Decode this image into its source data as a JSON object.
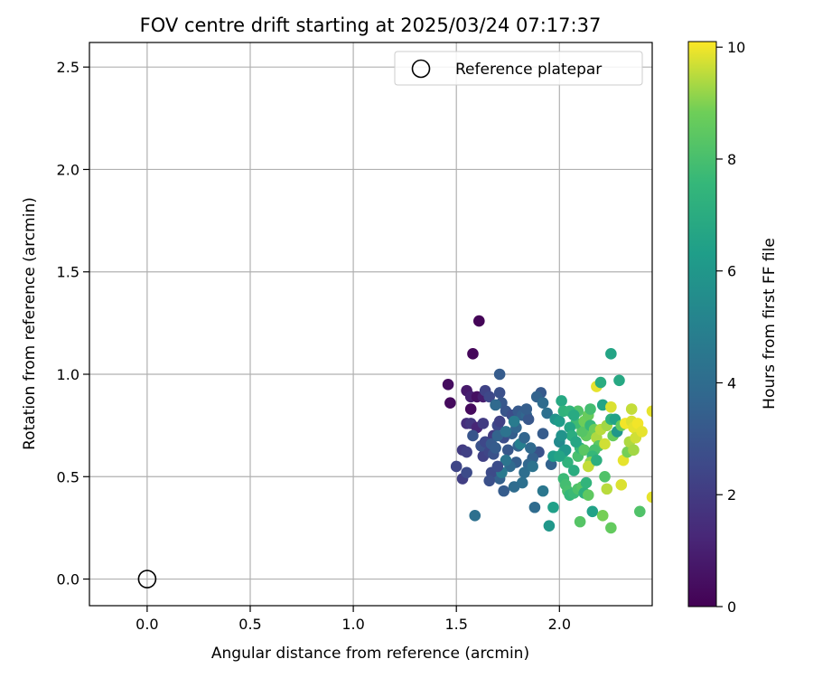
{
  "chart_data": {
    "type": "scatter",
    "title": "FOV centre drift starting at 2025/03/24 07:17:37",
    "xlabel": "Angular distance from reference (arcmin)",
    "ylabel": "Rotation from reference (arcmin)",
    "xlim": [
      -0.28,
      2.45
    ],
    "ylim": [
      -0.13,
      2.62
    ],
    "xticks": [
      0.0,
      0.5,
      1.0,
      1.5,
      2.0
    ],
    "xtick_labels": [
      "0.0",
      "0.5",
      "1.0",
      "1.5",
      "2.0"
    ],
    "yticks": [
      0.0,
      0.5,
      1.0,
      1.5,
      2.0,
      2.5
    ],
    "ytick_labels": [
      "0.0",
      "0.5",
      "1.0",
      "1.5",
      "2.0",
      "2.5"
    ],
    "grid": true,
    "legend": {
      "placement": "top-right",
      "entries": [
        "Reference platepar"
      ]
    },
    "reference": {
      "x": 0.0,
      "y": 0.0
    },
    "colorbar": {
      "label": "Hours from first FF file",
      "range": [
        0,
        10.1
      ],
      "ticks": [
        0,
        2,
        4,
        6,
        8,
        10
      ],
      "tick_labels": [
        "0",
        "2",
        "4",
        "6",
        "8",
        "10"
      ],
      "colormap": "viridis"
    },
    "series": [
      {
        "points": [
          [
            1.61,
            1.26,
            0.1
          ],
          [
            1.58,
            1.1,
            0.2
          ],
          [
            1.46,
            0.95,
            0.4
          ],
          [
            1.47,
            0.86,
            0.3
          ],
          [
            1.55,
            0.92,
            0.8
          ],
          [
            1.57,
            0.89,
            1.0
          ],
          [
            1.6,
            0.89,
            0.5
          ],
          [
            1.57,
            0.83,
            0.3
          ],
          [
            1.63,
            0.89,
            0.9
          ],
          [
            1.55,
            0.76,
            1.5
          ],
          [
            1.57,
            0.76,
            1.8
          ],
          [
            1.6,
            0.74,
            1.2
          ],
          [
            1.63,
            0.76,
            2.0
          ],
          [
            1.53,
            0.63,
            2.0
          ],
          [
            1.55,
            0.62,
            2.2
          ],
          [
            1.5,
            0.55,
            2.4
          ],
          [
            1.53,
            0.49,
            2.1
          ],
          [
            1.55,
            0.52,
            2.6
          ],
          [
            1.58,
            0.7,
            3.0
          ],
          [
            1.59,
            0.31,
            4.2
          ],
          [
            1.64,
            0.92,
            2.3
          ],
          [
            1.66,
            0.89,
            2.5
          ],
          [
            1.71,
            1.0,
            3.3
          ],
          [
            1.71,
            0.91,
            2.8
          ],
          [
            1.72,
            0.86,
            3.1
          ],
          [
            1.69,
            0.85,
            3.9
          ],
          [
            1.74,
            0.82,
            3.0
          ],
          [
            1.77,
            0.8,
            2.7
          ],
          [
            1.8,
            0.82,
            3.2
          ],
          [
            1.82,
            0.8,
            3.5
          ],
          [
            1.84,
            0.8,
            3.8
          ],
          [
            1.85,
            0.78,
            3.1
          ],
          [
            1.84,
            0.83,
            3.4
          ],
          [
            1.91,
            0.91,
            3.2
          ],
          [
            1.89,
            0.89,
            3.6
          ],
          [
            1.92,
            0.86,
            4.0
          ],
          [
            1.94,
            0.81,
            4.2
          ],
          [
            1.92,
            0.71,
            3.3
          ],
          [
            1.9,
            0.62,
            2.9
          ],
          [
            1.87,
            0.59,
            3.5
          ],
          [
            1.85,
            0.56,
            3.8
          ],
          [
            1.83,
            0.52,
            4.1
          ],
          [
            1.82,
            0.47,
            4.2
          ],
          [
            1.78,
            0.45,
            4.0
          ],
          [
            1.73,
            0.43,
            3.3
          ],
          [
            1.71,
            0.49,
            3.5
          ],
          [
            1.67,
            0.52,
            2.6
          ],
          [
            1.66,
            0.48,
            2.8
          ],
          [
            1.63,
            0.6,
            2.2
          ],
          [
            1.62,
            0.65,
            2.9
          ],
          [
            1.64,
            0.67,
            2.5
          ],
          [
            1.66,
            0.62,
            2.4
          ],
          [
            1.68,
            0.7,
            2.0
          ],
          [
            1.7,
            0.75,
            2.5
          ],
          [
            1.71,
            0.77,
            2.2
          ],
          [
            1.73,
            0.69,
            2.7
          ],
          [
            1.75,
            0.63,
            3.1
          ],
          [
            1.77,
            0.71,
            3.4
          ],
          [
            1.79,
            0.74,
            3.7
          ],
          [
            1.8,
            0.65,
            3.6
          ],
          [
            1.79,
            0.57,
            3.4
          ],
          [
            1.76,
            0.55,
            3.9
          ],
          [
            1.74,
            0.58,
            4.4
          ],
          [
            1.72,
            0.52,
            4.6
          ],
          [
            1.7,
            0.55,
            2.7
          ],
          [
            1.68,
            0.61,
            2.9
          ],
          [
            1.67,
            0.66,
            3.2
          ],
          [
            1.69,
            0.64,
            3.3
          ],
          [
            1.7,
            0.7,
            3.6
          ],
          [
            1.74,
            0.72,
            4.3
          ],
          [
            1.78,
            0.77,
            4.7
          ],
          [
            1.81,
            0.66,
            4.9
          ],
          [
            1.83,
            0.69,
            3.7
          ],
          [
            1.86,
            0.64,
            3.9
          ],
          [
            1.87,
            0.55,
            4.3
          ],
          [
            1.88,
            0.35,
            4.0
          ],
          [
            1.92,
            0.43,
            4.5
          ],
          [
            1.96,
            0.56,
            3.6
          ],
          [
            1.95,
            0.26,
            6.0
          ],
          [
            1.97,
            0.35,
            6.4
          ],
          [
            1.97,
            0.6,
            6.3
          ],
          [
            1.98,
            0.78,
            5.8
          ],
          [
            2.0,
            0.77,
            6.2
          ],
          [
            2.01,
            0.87,
            6.8
          ],
          [
            2.02,
            0.82,
            7.3
          ],
          [
            2.0,
            0.67,
            5.4
          ],
          [
            2.02,
            0.62,
            6.8
          ],
          [
            2.04,
            0.57,
            7.3
          ],
          [
            2.02,
            0.49,
            7.7
          ],
          [
            2.03,
            0.46,
            7.9
          ],
          [
            2.04,
            0.43,
            8.0
          ],
          [
            2.05,
            0.41,
            7.5
          ],
          [
            2.07,
            0.42,
            7.7
          ],
          [
            2.09,
            0.44,
            8.1
          ],
          [
            2.11,
            0.45,
            8.3
          ],
          [
            2.12,
            0.42,
            7.2
          ],
          [
            2.14,
            0.41,
            8.5
          ],
          [
            2.1,
            0.28,
            8.3
          ],
          [
            2.16,
            0.33,
            6.5
          ],
          [
            2.21,
            0.31,
            8.9
          ],
          [
            2.25,
            0.25,
            8.6
          ],
          [
            2.23,
            0.44,
            9.5
          ],
          [
            2.3,
            0.46,
            9.8
          ],
          [
            2.39,
            0.33,
            8.2
          ],
          [
            2.45,
            0.4,
            9.9
          ],
          [
            2.07,
            0.53,
            7.0
          ],
          [
            2.09,
            0.6,
            8.0
          ],
          [
            2.1,
            0.64,
            7.5
          ],
          [
            2.12,
            0.63,
            8.4
          ],
          [
            2.13,
            0.7,
            8.6
          ],
          [
            2.11,
            0.72,
            8.3
          ],
          [
            2.08,
            0.76,
            7.8
          ],
          [
            2.09,
            0.82,
            8.2
          ],
          [
            2.05,
            0.82,
            7.4
          ],
          [
            2.07,
            0.8,
            6.9
          ],
          [
            2.05,
            0.74,
            6.6
          ],
          [
            2.06,
            0.7,
            7.0
          ],
          [
            2.08,
            0.67,
            6.7
          ],
          [
            2.12,
            0.77,
            8.8
          ],
          [
            2.14,
            0.8,
            8.7
          ],
          [
            2.15,
            0.83,
            7.9
          ],
          [
            2.15,
            0.75,
            7.6
          ],
          [
            2.17,
            0.73,
            8.8
          ],
          [
            2.18,
            0.69,
            9.4
          ],
          [
            2.19,
            0.65,
            8.4
          ],
          [
            2.17,
            0.63,
            8.0
          ],
          [
            2.16,
            0.6,
            7.6
          ],
          [
            2.15,
            0.57,
            9.1
          ],
          [
            2.14,
            0.55,
            9.6
          ],
          [
            2.18,
            0.94,
            9.9
          ],
          [
            2.2,
            0.96,
            7.0
          ],
          [
            2.21,
            0.85,
            6.6
          ],
          [
            2.2,
            0.73,
            9.5
          ],
          [
            2.22,
            0.66,
            9.7
          ],
          [
            2.23,
            0.75,
            9.3
          ],
          [
            2.25,
            0.84,
            9.8
          ],
          [
            2.25,
            0.78,
            7.2
          ],
          [
            2.26,
            0.7,
            8.7
          ],
          [
            2.27,
            0.78,
            6.5
          ],
          [
            2.28,
            0.72,
            6.0
          ],
          [
            2.29,
            0.97,
            6.8
          ],
          [
            2.25,
            1.1,
            6.6
          ],
          [
            2.3,
            0.75,
            8.6
          ],
          [
            2.31,
            0.58,
            9.9
          ],
          [
            2.32,
            0.76,
            10.0
          ],
          [
            2.33,
            0.62,
            8.9
          ],
          [
            2.34,
            0.67,
            9.4
          ],
          [
            2.35,
            0.77,
            9.8
          ],
          [
            2.35,
            0.83,
            9.6
          ],
          [
            2.36,
            0.74,
            9.9
          ],
          [
            2.37,
            0.69,
            9.7
          ],
          [
            2.36,
            0.63,
            9.3
          ],
          [
            2.38,
            0.76,
            10.0
          ],
          [
            2.4,
            0.72,
            9.9
          ],
          [
            2.45,
            0.82,
            9.9
          ],
          [
            2.22,
            0.5,
            8.2
          ],
          [
            2.18,
            0.58,
            7.1
          ],
          [
            2.13,
            0.47,
            7.4
          ],
          [
            2.01,
            0.7,
            5.8
          ],
          [
            2.03,
            0.63,
            6.0
          ],
          [
            2.0,
            0.6,
            6.6
          ]
        ]
      }
    ]
  }
}
